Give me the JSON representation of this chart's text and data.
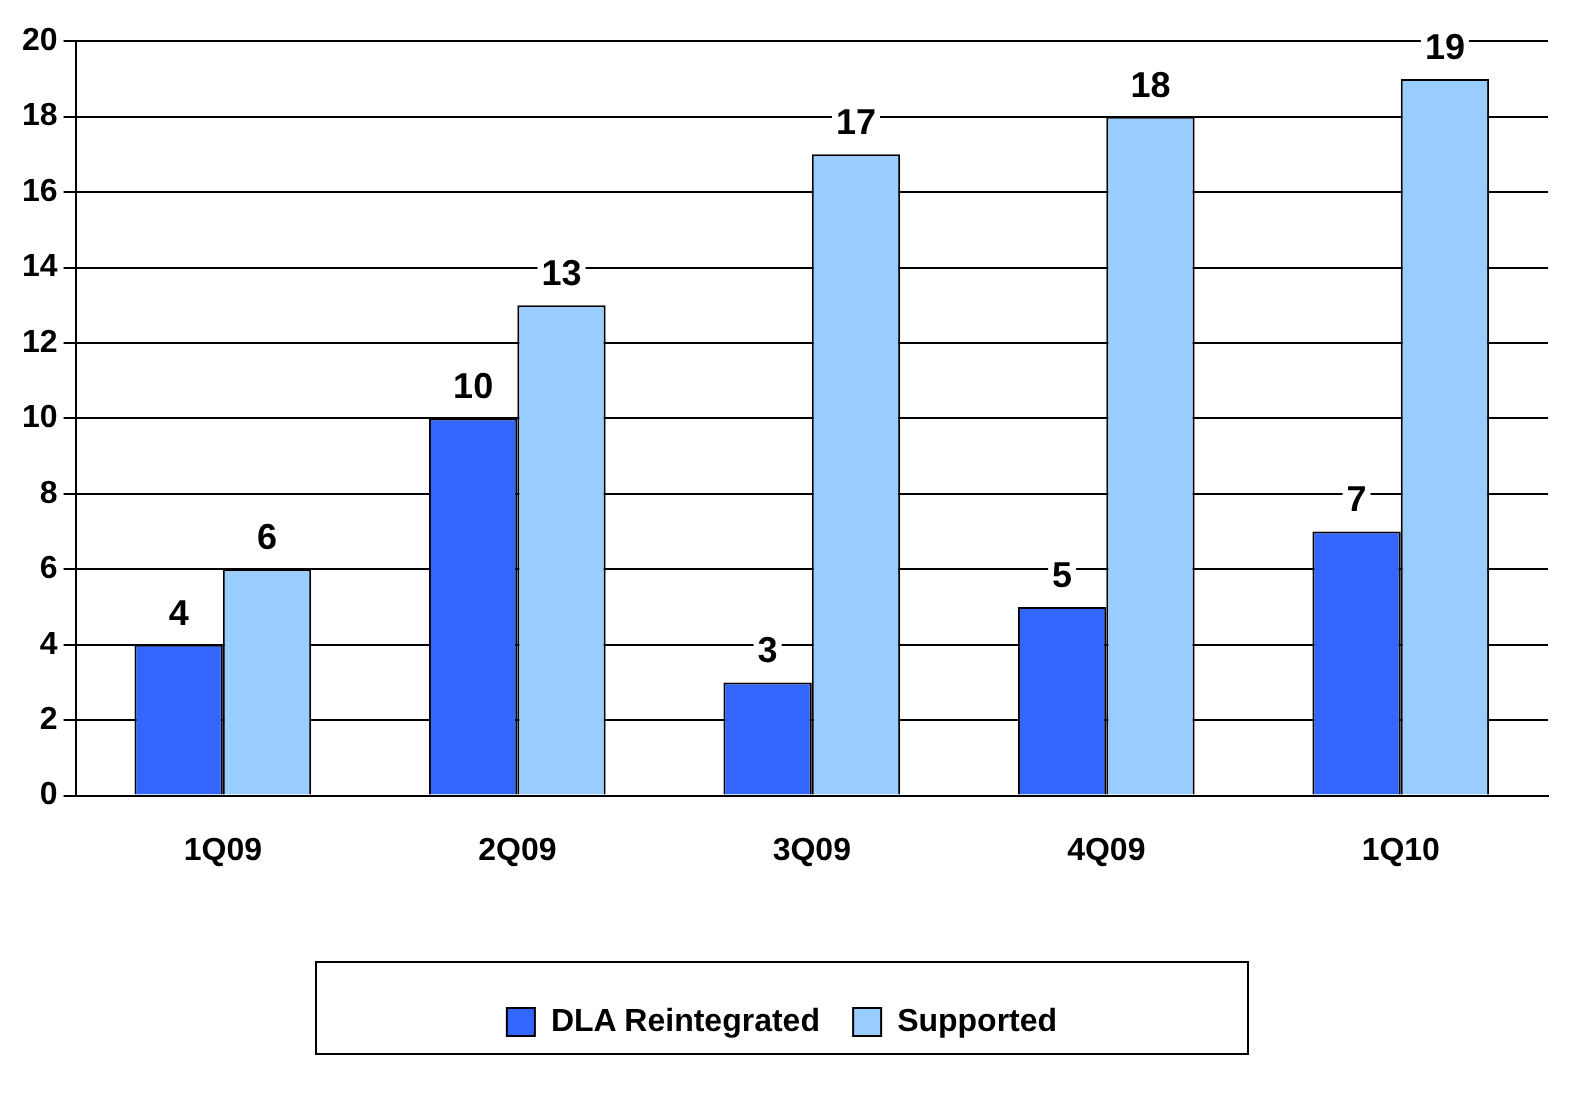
{
  "chart_data": {
    "type": "bar",
    "categories": [
      "1Q09",
      "2Q09",
      "3Q09",
      "4Q09",
      "1Q10"
    ],
    "series": [
      {
        "name": "DLA Reintegrated",
        "color": "#3366ff",
        "values": [
          4,
          10,
          3,
          5,
          7
        ]
      },
      {
        "name": "Supported",
        "color": "#99ccff",
        "values": [
          6,
          13,
          17,
          18,
          19
        ]
      }
    ],
    "ylim": [
      0,
      20
    ],
    "yticks": [
      0,
      2,
      4,
      6,
      8,
      10,
      12,
      14,
      16,
      18,
      20
    ],
    "grid": "y",
    "legend": "bottom",
    "data_labels": true
  }
}
